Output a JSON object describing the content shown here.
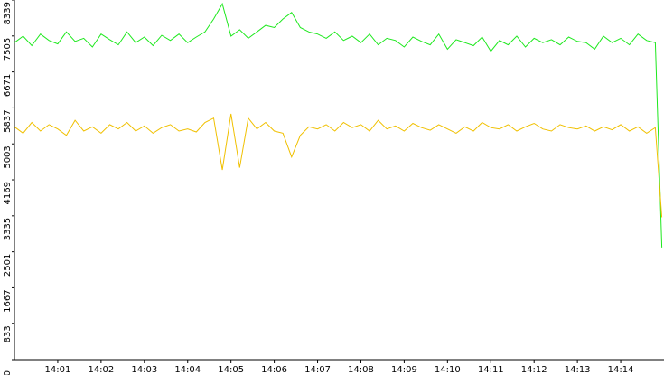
{
  "chart_data": {
    "type": "line",
    "x": [
      0,
      0.2,
      0.4,
      0.6,
      0.8,
      1,
      1.2,
      1.4,
      1.6,
      1.8,
      2,
      2.2,
      2.4,
      2.6,
      2.8,
      3,
      3.2,
      3.4,
      3.6,
      3.8,
      4,
      4.2,
      4.4,
      4.6,
      4.8,
      5,
      5.2,
      5.4,
      5.6,
      5.8,
      6,
      6.2,
      6.4,
      6.6,
      6.8,
      7,
      7.2,
      7.4,
      7.6,
      7.8,
      8,
      8.2,
      8.4,
      8.6,
      8.8,
      9,
      9.2,
      9.4,
      9.6,
      9.8,
      10,
      10.2,
      10.4,
      10.6,
      10.8,
      11,
      11.2,
      11.4,
      11.6,
      11.8,
      12,
      12.2,
      12.4,
      12.6,
      12.8,
      13,
      13.2,
      13.4,
      13.6,
      13.8,
      14,
      14.2,
      14.4,
      14.6,
      14.8,
      14.95
    ],
    "series": [
      {
        "color": "#1ee81e",
        "values": [
          7350,
          7500,
          7280,
          7550,
          7400,
          7320,
          7600,
          7380,
          7450,
          7250,
          7550,
          7420,
          7300,
          7600,
          7350,
          7480,
          7280,
          7520,
          7400,
          7550,
          7350,
          7480,
          7600,
          7900,
          8250,
          7500,
          7650,
          7450,
          7600,
          7750,
          7700,
          7900,
          8050,
          7700,
          7600,
          7550,
          7450,
          7600,
          7400,
          7500,
          7350,
          7550,
          7300,
          7450,
          7400,
          7250,
          7480,
          7380,
          7300,
          7550,
          7200,
          7420,
          7350,
          7280,
          7480,
          7150,
          7400,
          7300,
          7500,
          7250,
          7450,
          7350,
          7420,
          7300,
          7480,
          7380,
          7350,
          7200,
          7500,
          7350,
          7450,
          7300,
          7550,
          7400,
          7350,
          2600
        ]
      },
      {
        "color": "#f0c000",
        "values": [
          5400,
          5250,
          5500,
          5300,
          5450,
          5350,
          5200,
          5550,
          5300,
          5400,
          5250,
          5450,
          5350,
          5500,
          5300,
          5420,
          5250,
          5380,
          5450,
          5300,
          5350,
          5280,
          5500,
          5600,
          4400,
          5700,
          4450,
          5600,
          5350,
          5500,
          5300,
          5250,
          4700,
          5200,
          5400,
          5350,
          5450,
          5300,
          5500,
          5380,
          5450,
          5300,
          5550,
          5350,
          5420,
          5300,
          5480,
          5380,
          5320,
          5450,
          5350,
          5250,
          5400,
          5300,
          5500,
          5380,
          5350,
          5450,
          5300,
          5400,
          5480,
          5350,
          5300,
          5450,
          5380,
          5350,
          5420,
          5300,
          5400,
          5330,
          5450,
          5300,
          5400,
          5250,
          5380,
          3300
        ]
      }
    ],
    "xlim": [
      0,
      15
    ],
    "xticks": [
      {
        "value": 1,
        "label": "14:01"
      },
      {
        "value": 2,
        "label": "14:02"
      },
      {
        "value": 3,
        "label": "14:03"
      },
      {
        "value": 4,
        "label": "14:04"
      },
      {
        "value": 5,
        "label": "14:05"
      },
      {
        "value": 6,
        "label": "14:06"
      },
      {
        "value": 7,
        "label": "14:07"
      },
      {
        "value": 8,
        "label": "14:08"
      },
      {
        "value": 9,
        "label": "14:09"
      },
      {
        "value": 10,
        "label": "14:10"
      },
      {
        "value": 11,
        "label": "14:11"
      },
      {
        "value": 12,
        "label": "14:12"
      },
      {
        "value": 13,
        "label": "14:13"
      },
      {
        "value": 14,
        "label": "14:14"
      }
    ],
    "ylim": [
      0,
      8339
    ],
    "yticks": [
      0,
      833,
      1667,
      2501,
      3335,
      4169,
      5003,
      5837,
      6671,
      7505,
      8339
    ]
  }
}
